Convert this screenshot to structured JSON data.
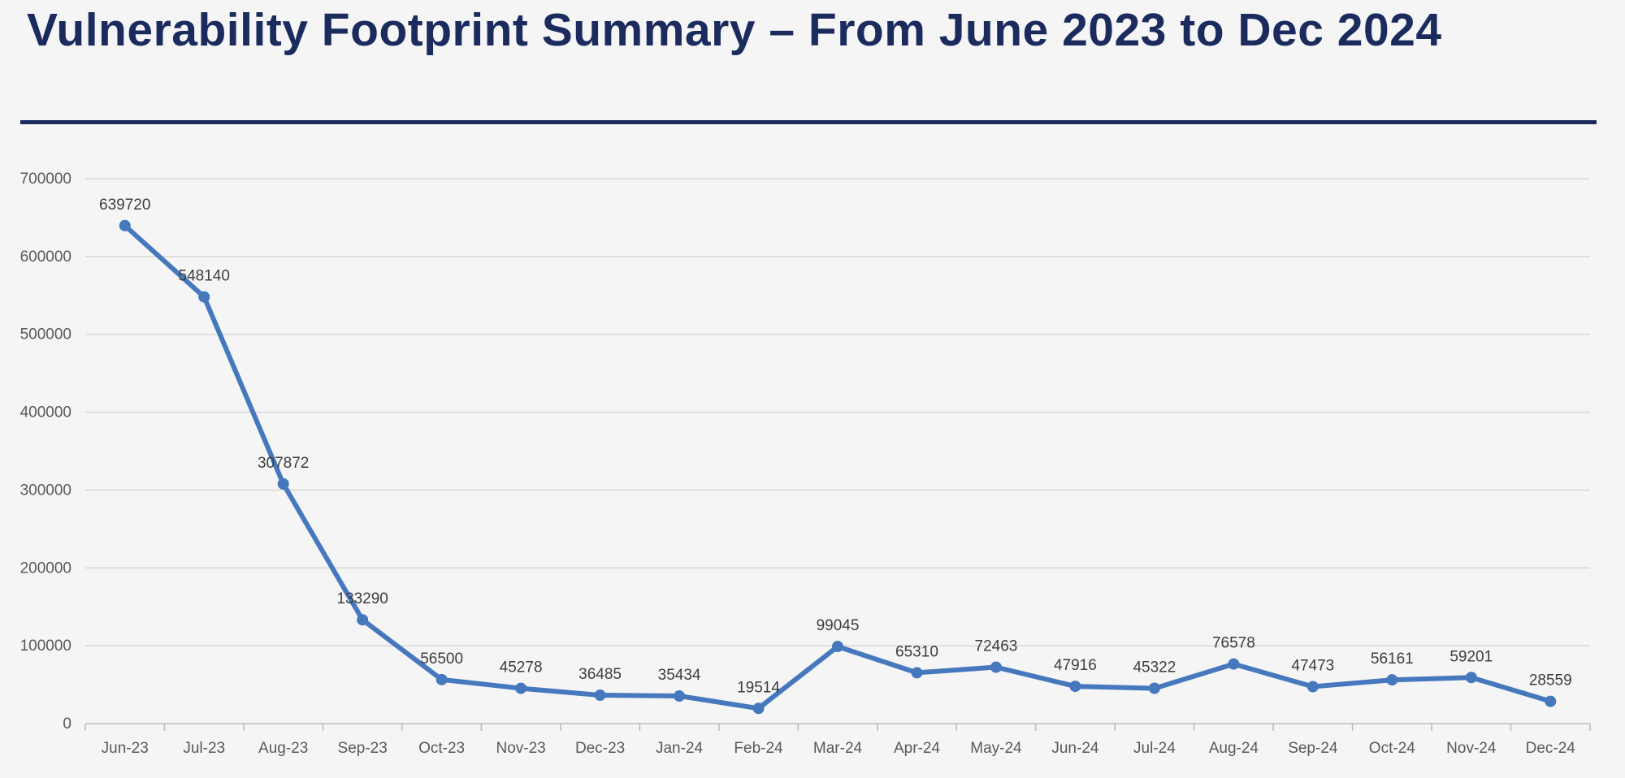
{
  "page": {
    "title": "Vulnerability Footprint Summary – From June 2023 to Dec 2024"
  },
  "colors": {
    "title_text": "#1b2b5e",
    "divider": "#1b2b5e",
    "background": "#f5f5f6",
    "series_line": "#4678bd",
    "marker_fill": "#4678bd",
    "gridline": "#d9d9d9",
    "axis_line": "#bdbdbd",
    "axis_label_text": "#595959",
    "data_label_text": "#3d3d3d"
  },
  "chart_data": {
    "type": "line",
    "title": "Vulnerability Footprint Summary – From June 2023 to Dec 2024",
    "categories": [
      "Jun-23",
      "Jul-23",
      "Aug-23",
      "Sep-23",
      "Oct-23",
      "Nov-23",
      "Dec-23",
      "Jan-24",
      "Feb-24",
      "Mar-24",
      "Apr-24",
      "May-24",
      "Jun-24",
      "Jul-24",
      "Aug-24",
      "Sep-24",
      "Oct-24",
      "Nov-24",
      "Dec-24"
    ],
    "values": [
      639720,
      548140,
      307872,
      133290,
      56500,
      45278,
      36485,
      35434,
      19514,
      99045,
      65310,
      72463,
      47916,
      45322,
      76578,
      47473,
      56161,
      59201,
      28559
    ],
    "xlabel": "",
    "ylabel": "",
    "ylim": [
      0,
      700000
    ],
    "y_tick_interval": 100000,
    "y_tick_labels": [
      "0",
      "100000",
      "200000",
      "300000",
      "400000",
      "500000",
      "600000",
      "700000"
    ],
    "grid": true,
    "legend": false,
    "markers": true,
    "data_labels": true
  }
}
